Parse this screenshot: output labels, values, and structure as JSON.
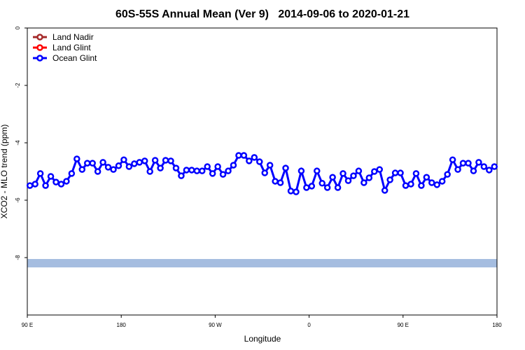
{
  "chart_data": {
    "type": "line",
    "title": "60S-55S Annual Mean (Ver 9)   2014-09-06 to 2020-01-21",
    "x_label": "Longitude",
    "y_label": "XCO2 - MLO trend (ppm)",
    "x": [
      92.5,
      97.5,
      102.5,
      107.5,
      112.5,
      117.5,
      122.5,
      127.5,
      132.5,
      137.5,
      142.5,
      147.5,
      152.5,
      157.5,
      162.5,
      167.5,
      172.5,
      177.5,
      182.5,
      187.5,
      192.5,
      197.5,
      202.5,
      207.5,
      212.5,
      217.5,
      222.5,
      227.5,
      232.5,
      237.5,
      242.5,
      247.5,
      252.5,
      257.5,
      262.5,
      267.5,
      272.5,
      277.5,
      282.5,
      287.5,
      292.5,
      297.5,
      302.5,
      307.5,
      312.5,
      317.5,
      322.5,
      327.5,
      332.5,
      337.5,
      342.5,
      347.5,
      352.5,
      357.5,
      362.5,
      367.5,
      372.5,
      377.5,
      382.5,
      387.5,
      392.5,
      397.5,
      402.5,
      407.5,
      412.5,
      417.5,
      422.5,
      427.5,
      432.5,
      437.5,
      442.5,
      447.5,
      452.5,
      457.5,
      462.5,
      467.5,
      472.5,
      477.5,
      482.5,
      487.5,
      492.5,
      497.5,
      502.5,
      507.5,
      512.5,
      517.5,
      522.5,
      527.5,
      532.5,
      537.5
    ],
    "series": [
      {
        "name": "Land Nadir",
        "color": "#a52a2a",
        "values": [
          null,
          null,
          null,
          null,
          null,
          null,
          null,
          null,
          null,
          null,
          null,
          null,
          null,
          null,
          null,
          null,
          null,
          null,
          null,
          null,
          null,
          null,
          null,
          null,
          null,
          null,
          null,
          null,
          null,
          null,
          null,
          null,
          null,
          null,
          null,
          null,
          null,
          null,
          null,
          null,
          null,
          null,
          null,
          null,
          null,
          null,
          null,
          null,
          null,
          null,
          null,
          null,
          null,
          null,
          null,
          null,
          null,
          null,
          null,
          null,
          null,
          null,
          null,
          null,
          null,
          null,
          null,
          null,
          null,
          null,
          null,
          null,
          null,
          null,
          null,
          null,
          null,
          null,
          null,
          null,
          null,
          null,
          null,
          null,
          null,
          null,
          null,
          null,
          null,
          null
        ]
      },
      {
        "name": "Land Glint",
        "color": "#ff0000",
        "values": [
          null,
          null,
          null,
          null,
          null,
          null,
          null,
          null,
          null,
          null,
          null,
          null,
          null,
          null,
          null,
          null,
          null,
          null,
          null,
          null,
          null,
          null,
          null,
          null,
          null,
          null,
          null,
          null,
          null,
          null,
          null,
          null,
          null,
          null,
          null,
          null,
          null,
          null,
          null,
          null,
          null,
          null,
          null,
          null,
          null,
          null,
          null,
          null,
          null,
          null,
          null,
          null,
          null,
          null,
          null,
          null,
          null,
          null,
          null,
          null,
          null,
          null,
          null,
          null,
          null,
          null,
          null,
          null,
          null,
          null,
          null,
          null,
          null,
          null,
          null,
          null,
          null,
          null,
          null,
          null,
          null,
          null,
          null,
          null,
          null,
          null,
          null,
          null,
          null,
          null
        ]
      },
      {
        "name": "Ocean Glint",
        "color": "#0000ff",
        "values": [
          -5.49,
          -5.44,
          -5.07,
          -5.49,
          -5.17,
          -5.37,
          -5.44,
          -5.34,
          -5.07,
          -4.56,
          -4.93,
          -4.71,
          -4.71,
          -5.0,
          -4.68,
          -4.85,
          -4.93,
          -4.8,
          -4.59,
          -4.83,
          -4.73,
          -4.68,
          -4.63,
          -5.0,
          -4.61,
          -4.88,
          -4.61,
          -4.63,
          -4.88,
          -5.15,
          -4.95,
          -4.95,
          -4.98,
          -4.98,
          -4.83,
          -5.07,
          -4.83,
          -5.1,
          -4.98,
          -4.78,
          -4.44,
          -4.44,
          -4.63,
          -4.51,
          -4.66,
          -5.05,
          -4.78,
          -5.34,
          -5.39,
          -4.88,
          -5.68,
          -5.71,
          -4.98,
          -5.56,
          -5.51,
          -4.98,
          -5.41,
          -5.56,
          -5.2,
          -5.56,
          -5.07,
          -5.32,
          -5.15,
          -4.98,
          -5.39,
          -5.22,
          -5.0,
          -4.93,
          -5.66,
          -5.29,
          -5.05,
          -5.05,
          -5.49,
          -5.44,
          -5.07,
          -5.49,
          -5.2,
          -5.39,
          -5.46,
          -5.34,
          -5.1,
          -4.59,
          -4.93,
          -4.71,
          -4.71,
          -4.98,
          -4.68,
          -4.83,
          -4.95,
          -4.83
        ]
      }
    ],
    "xlim": [
      90,
      540
    ],
    "xticks": [
      {
        "value": 90,
        "label": "90 E"
      },
      180,
      {
        "value": 270,
        "label": "90 W"
      },
      {
        "value": 360,
        "label": "0"
      },
      {
        "value": 450,
        "label": "90 E"
      },
      {
        "value": 540,
        "label": "180"
      }
    ],
    "ylim": [
      -10,
      0
    ],
    "yticks": [
      0,
      -2,
      -4,
      -6,
      -8
    ],
    "grid": false,
    "legend": "top-left"
  }
}
